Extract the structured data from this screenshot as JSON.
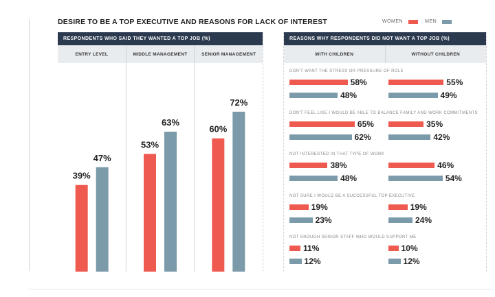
{
  "title": "DESIRE TO BE A TOP EXECUTIVE AND REASONS FOR LACK OF INTEREST",
  "legend": {
    "women_label": "WOMEN",
    "men_label": "MEN"
  },
  "colors": {
    "women": "#ef5a50",
    "men": "#7b9aaa",
    "header_bg": "#2c3a4f",
    "subheader_bg": "#e9ecef"
  },
  "chart_data": [
    {
      "type": "bar",
      "title": "RESPONDENTS WHO SAID THEY WANTED A TOP JOB (%)",
      "categories": [
        "ENTRY LEVEL",
        "MIDDLE MANAGEMENT",
        "SENIOR MANAGEMENT"
      ],
      "series": [
        {
          "name": "WOMEN",
          "values": [
            39,
            53,
            60
          ]
        },
        {
          "name": "MEN",
          "values": [
            47,
            63,
            72
          ]
        }
      ],
      "value_suffix": "%",
      "ylim": [
        0,
        100
      ],
      "grid": false
    },
    {
      "type": "bar",
      "orientation": "horizontal",
      "title": "REASONS WHY RESPONDENTS DID NOT WANT A TOP JOB (%)",
      "groups": [
        "WITH CHILDREN",
        "WITHOUT CHILDREN"
      ],
      "categories": [
        "DON'T WANT THE STRESS OR PRESSURE OF ROLE",
        "DON'T FEEL LIKE I WOULD BE ABLE TO BALANCE FAMILY AND WORK COMMITMENTS",
        "NOT INTERESTED IN THAT TYPE OF WORK",
        "NOT SURE I WOULD BE A SUCCESSFUL TOP EXECUTIVE",
        "NOT ENOUGH SENIOR STAFF WHO WOULD SUPPORT ME"
      ],
      "with_children": {
        "WOMEN": [
          58,
          65,
          38,
          19,
          11
        ],
        "MEN": [
          48,
          62,
          48,
          23,
          12
        ]
      },
      "without_children": {
        "WOMEN": [
          55,
          35,
          46,
          19,
          10
        ],
        "MEN": [
          49,
          42,
          54,
          24,
          12
        ]
      },
      "value_suffix": "%",
      "grid": false
    }
  ]
}
